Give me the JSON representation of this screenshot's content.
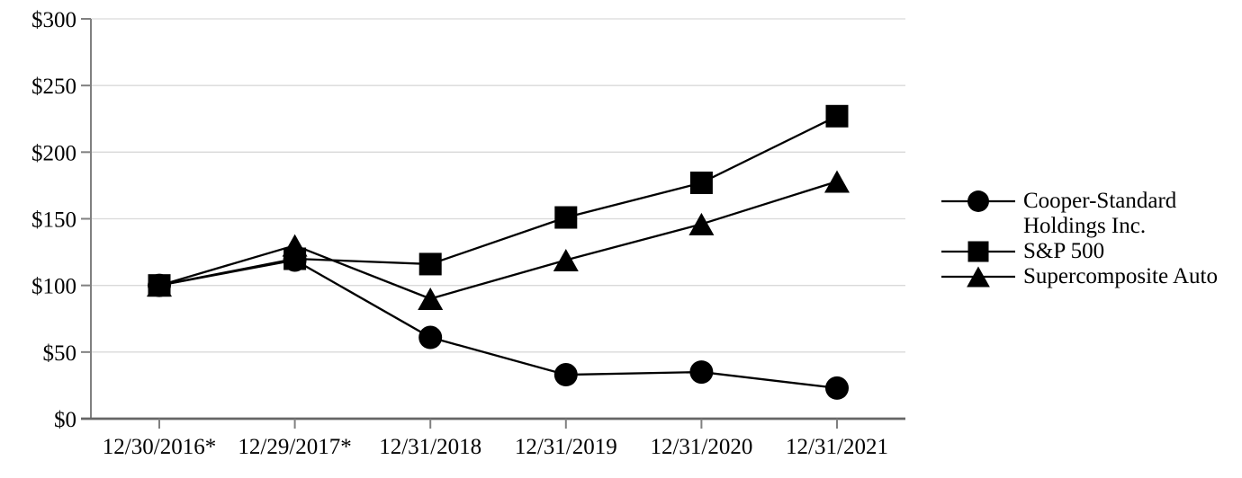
{
  "chart_data": {
    "type": "line",
    "title": "",
    "xlabel": "",
    "ylabel": "",
    "categories": [
      "12/30/2016*",
      "12/29/2017*",
      "12/31/2018",
      "12/31/2019",
      "12/31/2020",
      "12/31/2021"
    ],
    "series": [
      {
        "name": "Cooper-Standard Holdings Inc.",
        "marker": "circle",
        "values": [
          100,
          119,
          61,
          33,
          35,
          23
        ]
      },
      {
        "name": "S&P 500",
        "marker": "square",
        "values": [
          100,
          120,
          116,
          151,
          177,
          227
        ]
      },
      {
        "name": "Supercomposite Auto",
        "marker": "triangle",
        "values": [
          100,
          130,
          90,
          119,
          146,
          178
        ]
      }
    ],
    "ylim": [
      0,
      300
    ],
    "y_ticks": [
      0,
      50,
      100,
      150,
      200,
      250,
      300
    ],
    "y_tick_labels": [
      "$0",
      "$50",
      "$100",
      "$150",
      "$200",
      "$250",
      "$300"
    ],
    "grid": true,
    "legend_position": "right",
    "colors": {
      "series": "#000000",
      "gridline": "#d9d9d9",
      "y_axis": "#808080",
      "x_axis": "#666666",
      "tick": "#808080",
      "text": "#000000",
      "background": "#ffffff"
    }
  }
}
